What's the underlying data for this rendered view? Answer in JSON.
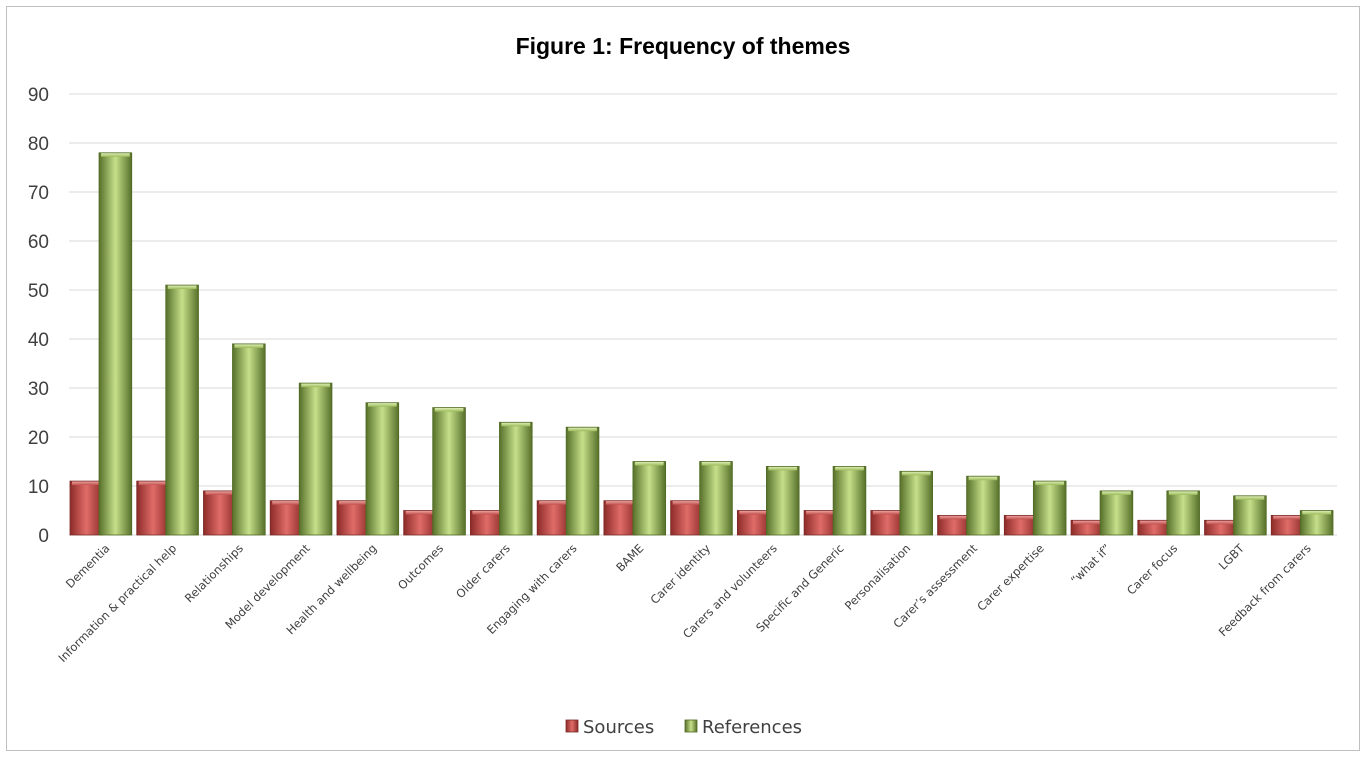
{
  "chart_data": {
    "type": "bar",
    "title": "Figure 1: Frequency of themes",
    "xlabel": "",
    "ylabel": "",
    "ylim": [
      0,
      90
    ],
    "yticks": [
      0,
      10,
      20,
      30,
      40,
      50,
      60,
      70,
      80,
      90
    ],
    "grid": true,
    "legend_position": "bottom",
    "categories": [
      "Dementia",
      "Information & practical help",
      "Relationships",
      "Model development",
      "Health and wellbeing",
      "Outcomes",
      "Older carers",
      "Engaging with carers",
      "BAME",
      "Carer identity",
      "Carers and volunteers",
      "Specific and Generic",
      "Personalisation",
      "Carer’s assessment",
      "Carer expertise",
      "“what if”",
      "Carer focus",
      "LGBT",
      "Feedback from carers"
    ],
    "series": [
      {
        "name": "Sources",
        "color": "#c0504d",
        "values": [
          11,
          11,
          9,
          7,
          7,
          5,
          5,
          7,
          7,
          7,
          5,
          5,
          5,
          4,
          4,
          3,
          3,
          3,
          4
        ]
      },
      {
        "name": "References",
        "color": "#9bbb59",
        "values": [
          78,
          51,
          39,
          31,
          27,
          26,
          23,
          22,
          15,
          15,
          14,
          14,
          13,
          12,
          11,
          9,
          9,
          8,
          5
        ]
      }
    ]
  }
}
